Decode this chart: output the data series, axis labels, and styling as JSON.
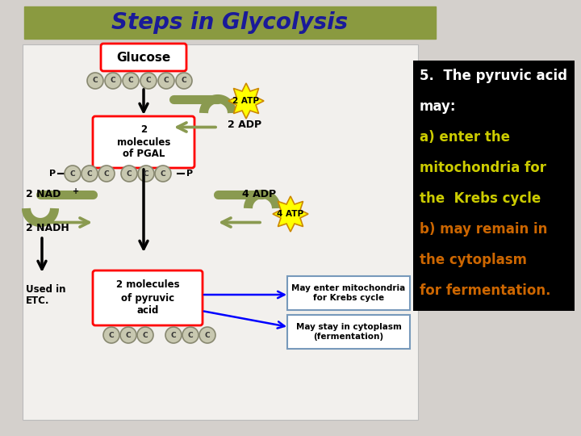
{
  "title": "Steps in Glycolysis",
  "title_bg": "#8a9a40",
  "title_color": "#1a1a99",
  "bg_color": "#d4d0cc",
  "left_panel_bg": "#f2f0ed",
  "left_panel_edge": "#bbbbbb",
  "right_panel_bg": "#000000",
  "arrow_color": "#8a9a50",
  "carbon_fill": "#c8c8b0",
  "carbon_edge": "#888870",
  "right_text": [
    "5.  The pyruvic acid",
    "may:",
    "a) enter the",
    "mitochondria for",
    "the  Krebs cycle",
    "b) may remain in",
    "the cytoplasm",
    "for fermentation."
  ],
  "right_text_colors": [
    "#ffffff",
    "#ffffff",
    "#cccc00",
    "#cccc00",
    "#cccc00",
    "#cc6600",
    "#cc6600",
    "#cc6600"
  ]
}
